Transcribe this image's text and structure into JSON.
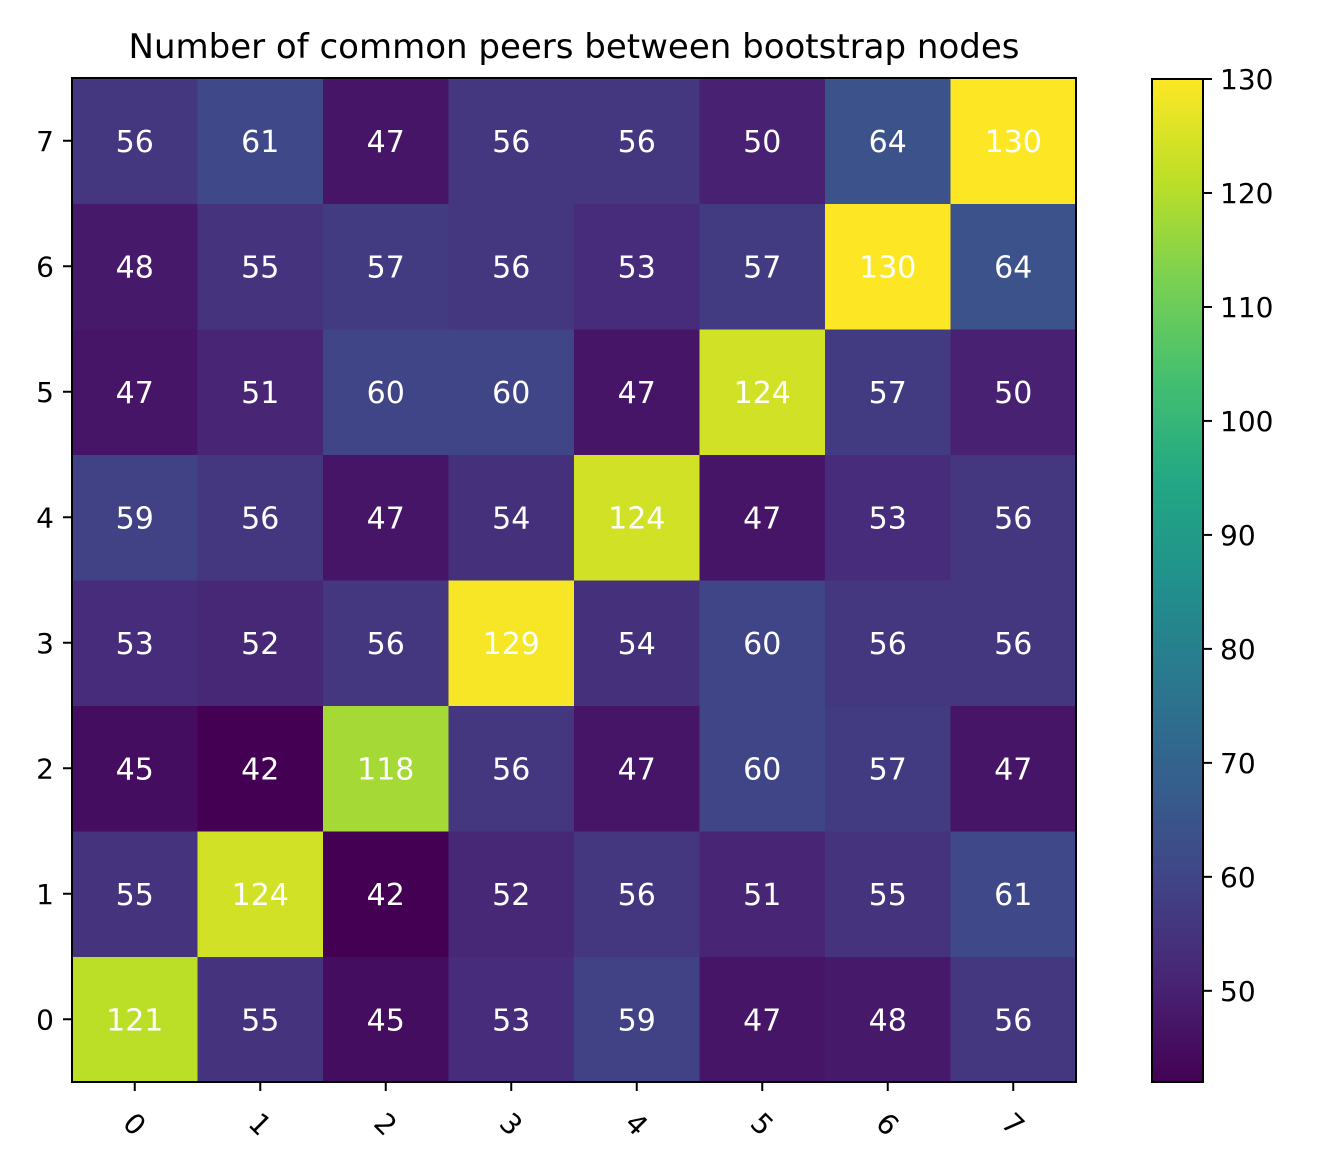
{
  "chart_data": {
    "type": "heatmap",
    "title": "Number of common peers between bootstrap nodes",
    "x_categories": [
      "0",
      "1",
      "2",
      "3",
      "4",
      "5",
      "6",
      "7"
    ],
    "y_categories": [
      "0",
      "1",
      "2",
      "3",
      "4",
      "5",
      "6",
      "7"
    ],
    "values": [
      [
        121,
        55,
        45,
        53,
        59,
        47,
        48,
        56
      ],
      [
        55,
        124,
        42,
        52,
        56,
        51,
        55,
        61
      ],
      [
        45,
        42,
        118,
        56,
        47,
        60,
        57,
        47
      ],
      [
        53,
        52,
        56,
        129,
        54,
        60,
        56,
        56
      ],
      [
        59,
        56,
        47,
        54,
        124,
        47,
        53,
        56
      ],
      [
        47,
        51,
        60,
        60,
        47,
        124,
        57,
        50
      ],
      [
        48,
        55,
        57,
        56,
        53,
        57,
        130,
        64
      ],
      [
        56,
        61,
        47,
        56,
        56,
        50,
        64,
        130
      ]
    ],
    "y_origin": "bottom",
    "x_tick_rotation_deg": 45,
    "colormap": "viridis",
    "color_range": [
      42,
      130
    ],
    "colorbar_ticks": [
      50,
      60,
      70,
      80,
      90,
      100,
      110,
      120,
      130
    ],
    "colorbar_position": "right",
    "cell_label_color": "#ffffff",
    "grid": false
  }
}
